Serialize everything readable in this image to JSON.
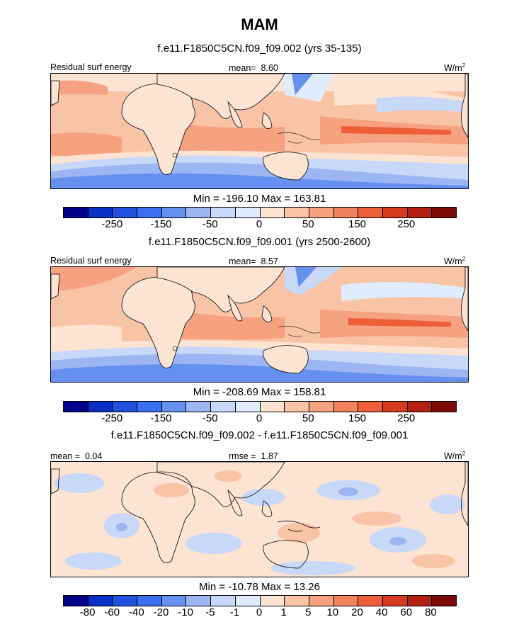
{
  "title": "MAM",
  "colors": {
    "abs_scale": [
      "#00008b",
      "#0a2fc4",
      "#1f50de",
      "#3b6ef0",
      "#6690f0",
      "#9cb6f3",
      "#c8d8f8",
      "#e0ebfb",
      "#fde3d2",
      "#f9c3a6",
      "#f6a180",
      "#f2825c",
      "#ec5f37",
      "#d63a1c",
      "#b31f10",
      "#7c0a04"
    ],
    "land": "#fde3d2",
    "border": "#000000"
  },
  "panels": [
    {
      "subtitle": "f.e11.F1850C5CN.f09_f09.002 (yrs 35-135)",
      "left_label": "Residual surf energy",
      "center_label": "mean=",
      "center_value": "8.60",
      "units": "W/m",
      "units_sup": "2",
      "minmax": "Min = -196.10 Max = 163.81",
      "colorbar_labels": [
        "-250",
        "-150",
        "-50",
        "0",
        "50",
        "150",
        "250"
      ]
    },
    {
      "subtitle": "f.e11.F1850C5CN.f09_f09.001 (yrs 2500-2600)",
      "left_label": "Residual surf energy",
      "center_label": "mean=",
      "center_value": "8.57",
      "units": "W/m",
      "units_sup": "2",
      "minmax": "Min = -208.69 Max = 158.81",
      "colorbar_labels": [
        "-250",
        "-150",
        "-50",
        "0",
        "50",
        "150",
        "250"
      ]
    },
    {
      "subtitle": "f.e11.F1850C5CN.f09_f09.002 - f.e11.F1850C5CN.f09_f09.001",
      "left_label": "mean =",
      "left_value": "0.04",
      "center_label": "rmse =",
      "center_value": "1.87",
      "units": "W/m",
      "units_sup": "2",
      "minmax": "Min = -10.78 Max =  13.26",
      "colorbar_labels": [
        "-80",
        "-60",
        "-40",
        "-20",
        "-10",
        "-5",
        "-1",
        "0",
        "1",
        "5",
        "10",
        "20",
        "40",
        "60",
        "80"
      ]
    }
  ],
  "chart_data": [
    {
      "type": "heatmap",
      "title": "f.e11.F1850C5CN.f09_f09.002 (yrs 35-135)",
      "variable": "Residual surf energy",
      "units": "W/m2",
      "mean": 8.6,
      "min": -196.1,
      "max": 163.81,
      "contour_levels": [
        -300,
        -250,
        -200,
        -150,
        -100,
        -50,
        -25,
        0,
        25,
        50,
        100,
        150,
        200,
        250,
        300
      ],
      "colorbar_tick_labels": [
        -250,
        -150,
        -50,
        0,
        50,
        150,
        250
      ]
    },
    {
      "type": "heatmap",
      "title": "f.e11.F1850C5CN.f09_f09.001 (yrs 2500-2600)",
      "variable": "Residual surf energy",
      "units": "W/m2",
      "mean": 8.57,
      "min": -208.69,
      "max": 158.81,
      "contour_levels": [
        -300,
        -250,
        -200,
        -150,
        -100,
        -50,
        -25,
        0,
        25,
        50,
        100,
        150,
        200,
        250,
        300
      ],
      "colorbar_tick_labels": [
        -250,
        -150,
        -50,
        0,
        50,
        150,
        250
      ]
    },
    {
      "type": "heatmap",
      "title": "f.e11.F1850C5CN.f09_f09.002 - f.e11.F1850C5CN.f09_f09.001",
      "units": "W/m2",
      "mean": 0.04,
      "rmse": 1.87,
      "min": -10.78,
      "max": 13.26,
      "contour_levels": [
        -80,
        -60,
        -40,
        -20,
        -10,
        -5,
        -1,
        0,
        1,
        5,
        10,
        20,
        40,
        60,
        80
      ],
      "colorbar_tick_labels": [
        -80,
        -60,
        -40,
        -20,
        -10,
        -5,
        -1,
        0,
        1,
        5,
        10,
        20,
        40,
        60,
        80
      ]
    }
  ]
}
